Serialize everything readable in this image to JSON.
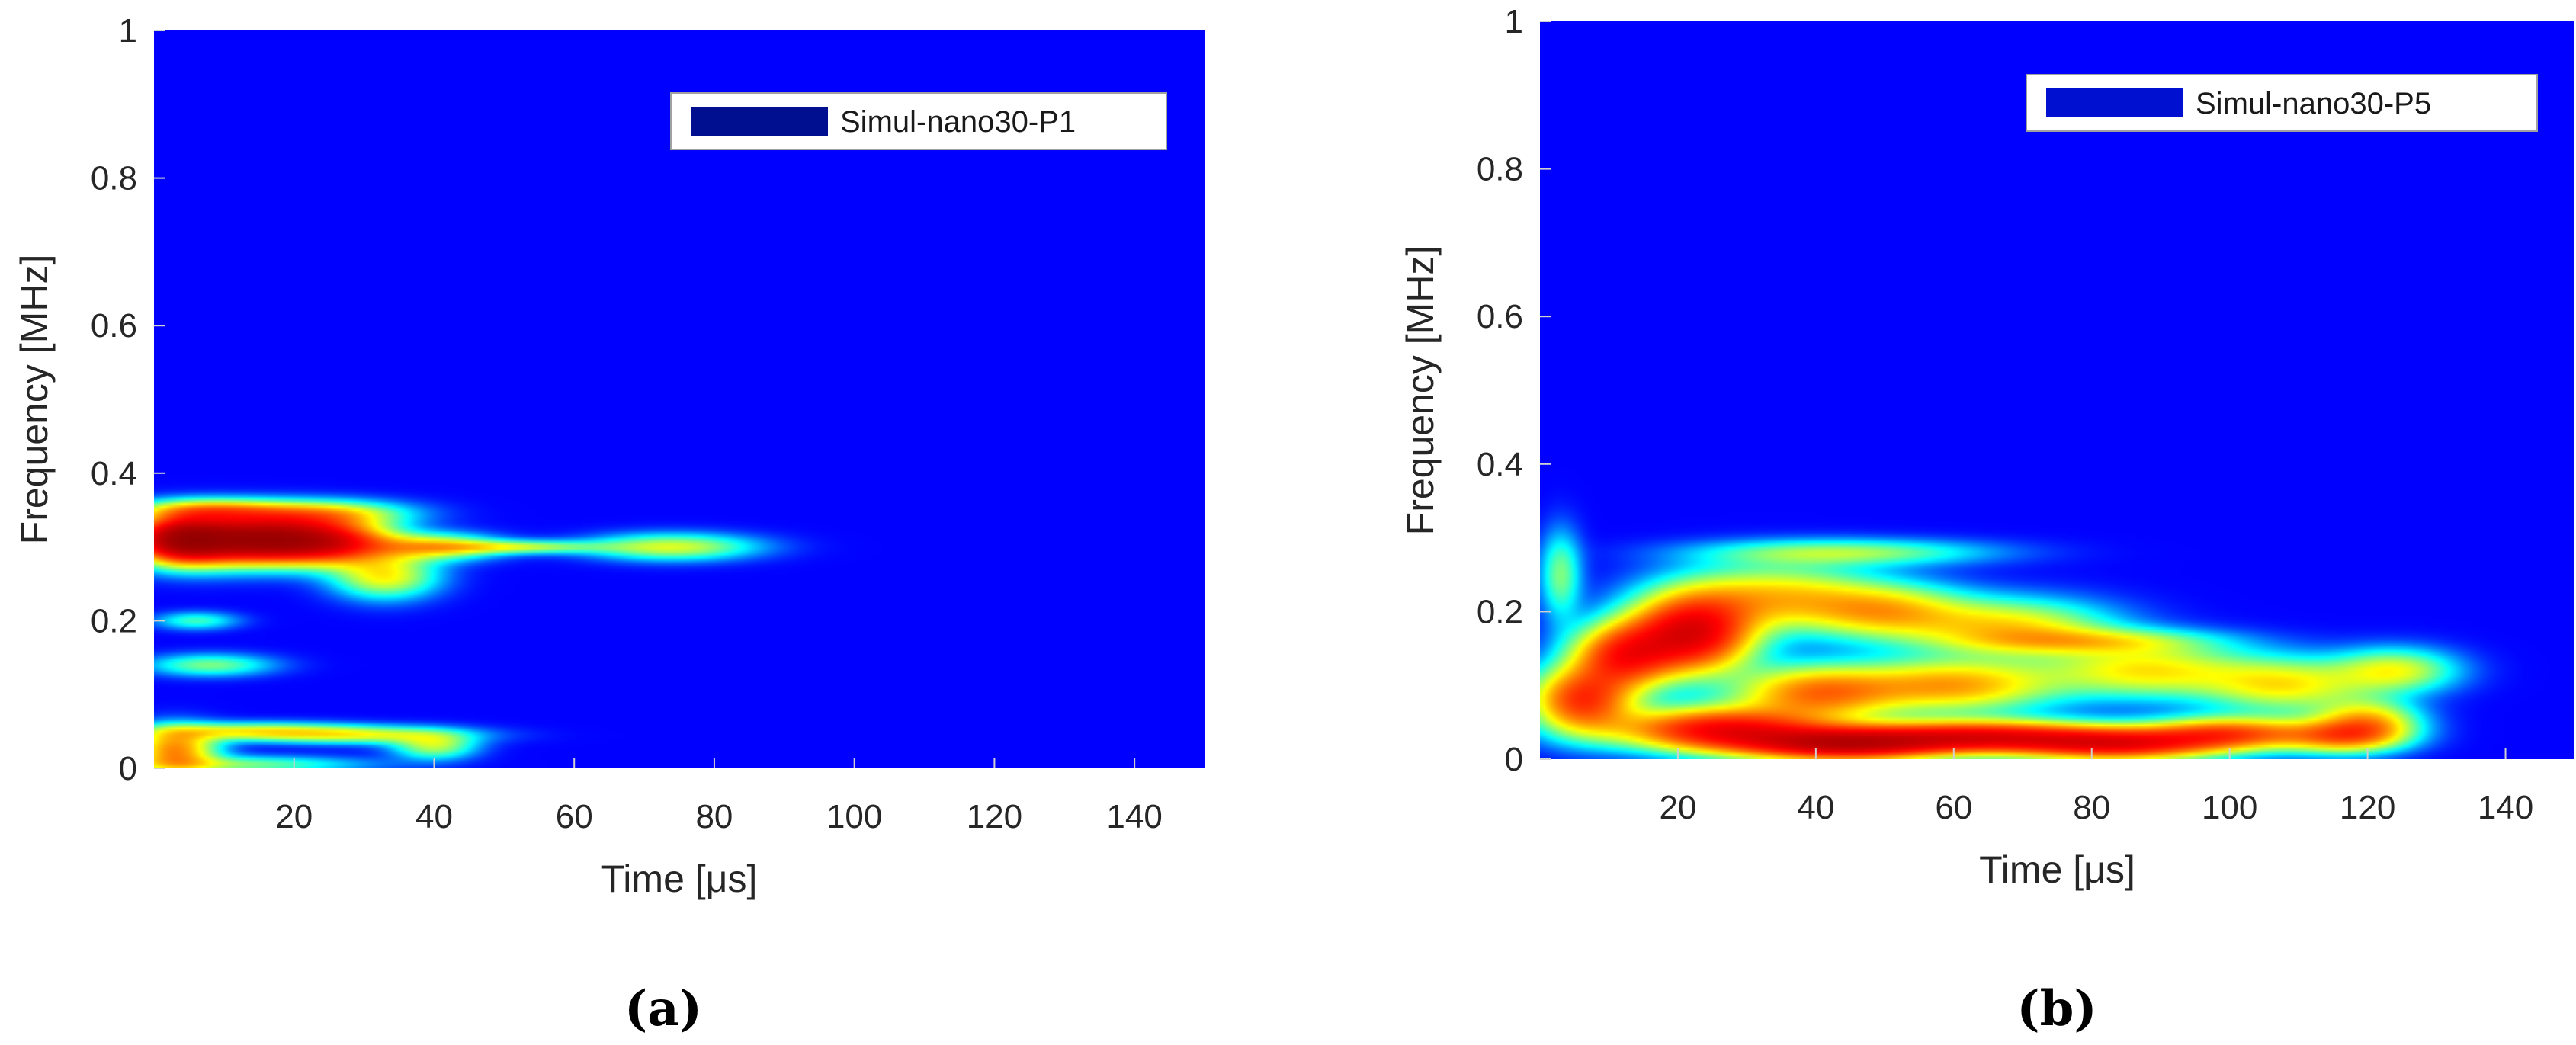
{
  "chart_data": [
    {
      "type": "heatmap",
      "panel_label": "(a)",
      "legend": "Simul-nano30-P1",
      "xlabel": "Time [μs]",
      "ylabel": "Frequency [MHz]",
      "xlim": [
        0,
        150
      ],
      "ylim": [
        0,
        1
      ],
      "xticks": [
        20,
        40,
        60,
        80,
        100,
        120,
        140
      ],
      "yticks": [
        0,
        0.2,
        0.4,
        0.6,
        0.8,
        1
      ],
      "ytick_labels": [
        "0",
        "0.2",
        "0.4",
        "0.6",
        "0.8",
        "1"
      ],
      "colormap": "jet",
      "background_color": "#00008f",
      "points": [
        {
          "x": 10,
          "y": 0.31,
          "sx": 9,
          "sy": 0.022,
          "v": 1.0
        },
        {
          "x": 4,
          "y": 0.31,
          "sx": 4,
          "sy": 0.02,
          "v": 0.75
        },
        {
          "x": 18,
          "y": 0.31,
          "sx": 7,
          "sy": 0.018,
          "v": 0.7
        },
        {
          "x": 26,
          "y": 0.305,
          "sx": 6,
          "sy": 0.02,
          "v": 0.55
        },
        {
          "x": 8,
          "y": 0.35,
          "sx": 7,
          "sy": 0.01,
          "v": 0.4
        },
        {
          "x": 24,
          "y": 0.345,
          "sx": 8,
          "sy": 0.012,
          "v": 0.4
        },
        {
          "x": 33,
          "y": 0.26,
          "sx": 5,
          "sy": 0.02,
          "v": 0.38
        },
        {
          "x": 40,
          "y": 0.3,
          "sx": 6,
          "sy": 0.012,
          "v": 0.4
        },
        {
          "x": 52,
          "y": 0.3,
          "sx": 8,
          "sy": 0.006,
          "v": 0.3
        },
        {
          "x": 74,
          "y": 0.3,
          "sx": 8,
          "sy": 0.012,
          "v": 0.34
        },
        {
          "x": 3,
          "y": 0.025,
          "sx": 4,
          "sy": 0.02,
          "v": 0.55
        },
        {
          "x": 14,
          "y": 0.05,
          "sx": 10,
          "sy": 0.008,
          "v": 0.35
        },
        {
          "x": 30,
          "y": 0.045,
          "sx": 10,
          "sy": 0.008,
          "v": 0.3
        },
        {
          "x": 40,
          "y": 0.03,
          "sx": 4,
          "sy": 0.012,
          "v": 0.3
        },
        {
          "x": 8,
          "y": 0.14,
          "sx": 6,
          "sy": 0.01,
          "v": 0.25
        },
        {
          "x": 6,
          "y": 0.2,
          "sx": 4,
          "sy": 0.008,
          "v": 0.2
        },
        {
          "x": 12,
          "y": 0.005,
          "sx": 12,
          "sy": 0.008,
          "v": 0.25
        }
      ]
    },
    {
      "type": "heatmap",
      "panel_label": "(b)",
      "legend": "Simul-nano30-P5",
      "xlabel": "Time [μs]",
      "ylabel": "Frequency [MHz]",
      "xlim": [
        0,
        150
      ],
      "ylim": [
        0,
        1
      ],
      "xticks": [
        20,
        40,
        60,
        80,
        100,
        120,
        140
      ],
      "yticks": [
        0,
        0.2,
        0.4,
        0.6,
        0.8,
        1
      ],
      "ytick_labels": [
        "0",
        "0.2",
        "0.4",
        "0.6",
        "0.8",
        "1"
      ],
      "colormap": "jet",
      "background_color": "#00008f",
      "points": [
        {
          "x": 22,
          "y": 0.17,
          "sx": 6,
          "sy": 0.035,
          "v": 0.95
        },
        {
          "x": 12,
          "y": 0.14,
          "sx": 5,
          "sy": 0.03,
          "v": 0.7
        },
        {
          "x": 6,
          "y": 0.08,
          "sx": 5,
          "sy": 0.03,
          "v": 0.7
        },
        {
          "x": 26,
          "y": 0.04,
          "sx": 10,
          "sy": 0.02,
          "v": 0.85
        },
        {
          "x": 44,
          "y": 0.02,
          "sx": 10,
          "sy": 0.015,
          "v": 1.0
        },
        {
          "x": 64,
          "y": 0.03,
          "sx": 12,
          "sy": 0.015,
          "v": 0.85
        },
        {
          "x": 84,
          "y": 0.02,
          "sx": 10,
          "sy": 0.015,
          "v": 0.8
        },
        {
          "x": 100,
          "y": 0.035,
          "sx": 8,
          "sy": 0.015,
          "v": 0.6
        },
        {
          "x": 116,
          "y": 0.03,
          "sx": 6,
          "sy": 0.015,
          "v": 0.45
        },
        {
          "x": 40,
          "y": 0.09,
          "sx": 8,
          "sy": 0.025,
          "v": 0.55
        },
        {
          "x": 60,
          "y": 0.1,
          "sx": 10,
          "sy": 0.025,
          "v": 0.5
        },
        {
          "x": 34,
          "y": 0.22,
          "sx": 10,
          "sy": 0.03,
          "v": 0.42
        },
        {
          "x": 50,
          "y": 0.2,
          "sx": 8,
          "sy": 0.025,
          "v": 0.4
        },
        {
          "x": 68,
          "y": 0.18,
          "sx": 10,
          "sy": 0.025,
          "v": 0.4
        },
        {
          "x": 88,
          "y": 0.12,
          "sx": 10,
          "sy": 0.025,
          "v": 0.4
        },
        {
          "x": 108,
          "y": 0.1,
          "sx": 8,
          "sy": 0.025,
          "v": 0.38
        },
        {
          "x": 124,
          "y": 0.12,
          "sx": 6,
          "sy": 0.02,
          "v": 0.35
        },
        {
          "x": 120,
          "y": 0.05,
          "sx": 5,
          "sy": 0.02,
          "v": 0.45
        },
        {
          "x": 44,
          "y": 0.28,
          "sx": 14,
          "sy": 0.012,
          "v": 0.28
        },
        {
          "x": 80,
          "y": 0.16,
          "sx": 12,
          "sy": 0.012,
          "v": 0.28
        },
        {
          "x": 3,
          "y": 0.25,
          "sx": 2,
          "sy": 0.04,
          "v": 0.25
        }
      ]
    }
  ]
}
